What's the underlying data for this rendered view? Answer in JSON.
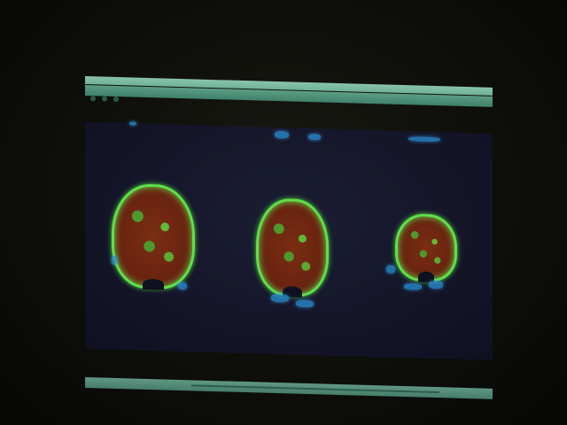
{
  "photo": {
    "subject": "",
    "menu_bar": {
      "menu_text": "",
      "icons_text": ""
    },
    "window": {
      "title": ""
    },
    "scans": [
      {
        "label": "",
        "color_outer": "#5fe04a",
        "color_inner": "#6a2410"
      },
      {
        "label": "",
        "color_outer": "#5fe04a",
        "color_inner": "#6a2410"
      },
      {
        "label": "",
        "color_outer": "#5fe04a",
        "color_inner": "#6a2410"
      }
    ],
    "bottom_bar": {
      "controls_text": "",
      "status_text": ""
    },
    "colors": {
      "room": "#0c0c09",
      "menu": "#9fe3c9",
      "scan_background": "#141529",
      "scan_outline": "#5fe04a",
      "scan_fill": "#6a2410",
      "blue_highlight": "#2a8fd6"
    }
  }
}
